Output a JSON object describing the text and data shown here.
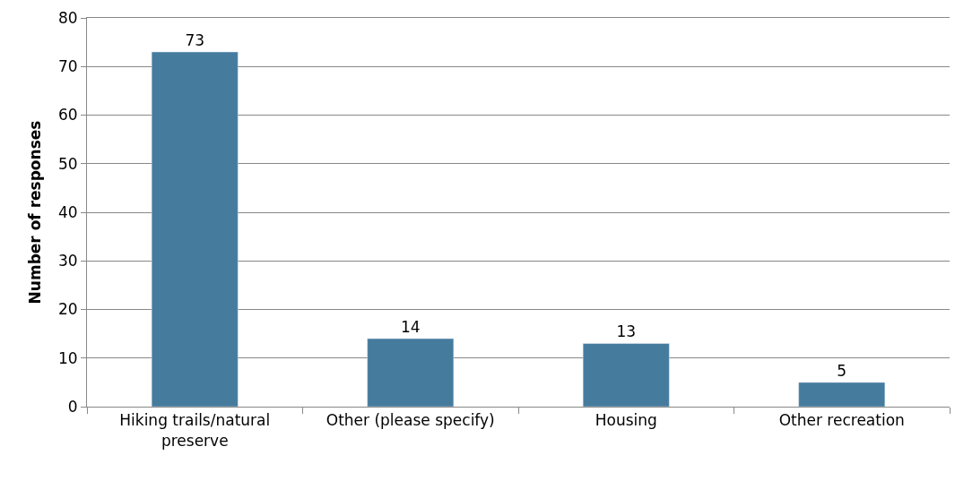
{
  "chart_data": {
    "type": "bar",
    "ylabel": "Number of responses",
    "categories": [
      "Hiking trails/natural preserve",
      "Other (please specify)",
      "Housing",
      "Other recreation"
    ],
    "values": [
      73,
      14,
      13,
      5
    ],
    "color": "#457b9d",
    "data_labels": true,
    "ylim": [
      0,
      80
    ],
    "yticks": [
      0,
      10,
      20,
      30,
      40,
      50,
      60,
      70,
      80
    ],
    "grid": "y"
  }
}
